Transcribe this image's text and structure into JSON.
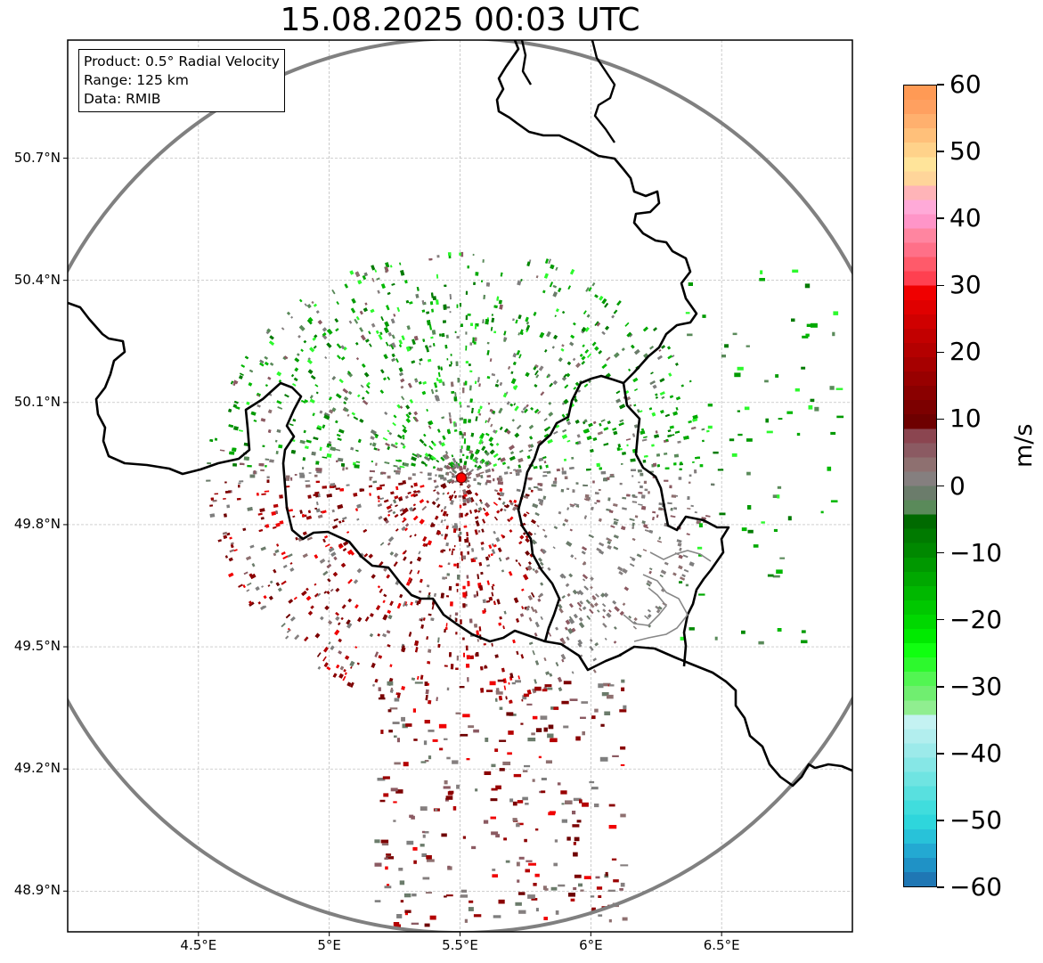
{
  "title": "15.08.2025 00:03 UTC",
  "info_box": {
    "product": "Product: 0.5° Radial Velocity",
    "range": "Range: 125 km",
    "data": "Data: RMIB"
  },
  "map": {
    "lon_range": [
      4.0,
      7.0
    ],
    "lat_range": [
      48.8,
      50.99
    ],
    "radar_site": {
      "lon": 5.505,
      "lat": 49.915
    },
    "lat_ticks": [
      {
        "value": 50.7,
        "label": "50.7°N"
      },
      {
        "value": 50.4,
        "label": "50.4°N"
      },
      {
        "value": 50.1,
        "label": "50.1°N"
      },
      {
        "value": 49.8,
        "label": "49.8°N"
      },
      {
        "value": 49.5,
        "label": "49.5°N"
      },
      {
        "value": 49.2,
        "label": "49.2°N"
      },
      {
        "value": 48.9,
        "label": "48.9°N"
      }
    ],
    "lon_ticks": [
      {
        "value": 4.5,
        "label": "4.5°E"
      },
      {
        "value": 5.0,
        "label": "5°E"
      },
      {
        "value": 5.5,
        "label": "5.5°E"
      },
      {
        "value": 6.0,
        "label": "6°E"
      },
      {
        "value": 6.5,
        "label": "6.5°E"
      }
    ],
    "range_ring_color": "#808080",
    "border_color": "#000000",
    "lux_border_color": "#888888",
    "site_marker_color": "#ff0000"
  },
  "colorbar": {
    "unit": "m/s",
    "min": -60,
    "max": 60,
    "ticks": [
      {
        "value": 60,
        "label": "60"
      },
      {
        "value": 50,
        "label": "50"
      },
      {
        "value": 40,
        "label": "40"
      },
      {
        "value": 30,
        "label": "30"
      },
      {
        "value": 20,
        "label": "20"
      },
      {
        "value": 10,
        "label": "10"
      },
      {
        "value": 0,
        "label": "0"
      },
      {
        "value": -10,
        "label": "−10"
      },
      {
        "value": -20,
        "label": "−20"
      },
      {
        "value": -30,
        "label": "−30"
      },
      {
        "value": -40,
        "label": "−40"
      },
      {
        "value": -50,
        "label": "−50"
      },
      {
        "value": -60,
        "label": "−60"
      }
    ],
    "colors_bottom_to_top": [
      "#1f77b4",
      "#1f92c6",
      "#23a9d2",
      "#28c2d9",
      "#2ed6dc",
      "#40dddd",
      "#58e0df",
      "#6fe4e2",
      "#86e7e6",
      "#9ceaea",
      "#b2eeee",
      "#c4f2f2",
      "#90ee90",
      "#70ee70",
      "#52f552",
      "#2df92d",
      "#10ff10",
      "#00ea00",
      "#00d800",
      "#00c800",
      "#00b800",
      "#00a800",
      "#009800",
      "#008800",
      "#007a00",
      "#006a00",
      "#5a8a5a",
      "#6b7c6b",
      "#857f7f",
      "#8e7070",
      "#8b5a62",
      "#8b4550",
      "#6e0000",
      "#7c0000",
      "#8a0000",
      "#980000",
      "#a60000",
      "#b40000",
      "#c20000",
      "#d00000",
      "#e00000",
      "#f00000",
      "#ff4050",
      "#ff5a6a",
      "#ff7088",
      "#ff85a0",
      "#ff95c8",
      "#ffaad8",
      "#ffb4b8",
      "#ffd59a",
      "#ffe49a",
      "#ffd28a",
      "#ffc07a",
      "#ffb06e",
      "#ffa060",
      "#ff9a55"
    ]
  }
}
